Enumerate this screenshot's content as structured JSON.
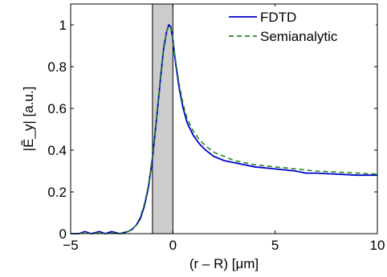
{
  "chart_data": {
    "type": "line",
    "xlabel": "(r – R) [μm]",
    "ylabel": "|Ẽ_y| [a.u.]",
    "xlim": [
      -5,
      10
    ],
    "ylim": [
      0,
      1.1
    ],
    "xticks": [
      -5,
      0,
      5,
      10
    ],
    "xtick_labels": [
      "−5",
      "0",
      "5",
      "10"
    ],
    "yticks": [
      0,
      0.2,
      0.4,
      0.6,
      0.8,
      1
    ],
    "ytick_labels": [
      "0",
      "0.2",
      "0.4",
      "0.6",
      "0.8",
      "1"
    ],
    "grid": false,
    "legend_position": "top-right",
    "shaded_region": {
      "x_start": -1.0,
      "x_end": 0.0,
      "color": "#cccccc"
    },
    "series": [
      {
        "name": "FDTD",
        "color": "#0000cc",
        "style": "solid",
        "x": [
          -5,
          -4.6,
          -4.3,
          -4.0,
          -3.6,
          -3.3,
          -3.0,
          -2.6,
          -2.2,
          -2.0,
          -1.8,
          -1.6,
          -1.4,
          -1.2,
          -1.0,
          -0.8,
          -0.6,
          -0.45,
          -0.3,
          -0.2,
          -0.1,
          0.0,
          0.1,
          0.3,
          0.5,
          0.7,
          1.0,
          1.3,
          1.6,
          2.0,
          2.5,
          3.0,
          3.5,
          4.0,
          5.0,
          6.0,
          6.5,
          7.0,
          8.0,
          9.0,
          10.0
        ],
        "y": [
          0.0,
          0.0,
          0.01,
          0.0,
          0.01,
          0.0,
          0.01,
          0.0,
          0.01,
          0.02,
          0.04,
          0.07,
          0.13,
          0.22,
          0.36,
          0.55,
          0.75,
          0.89,
          0.97,
          1.0,
          0.99,
          0.93,
          0.84,
          0.7,
          0.6,
          0.53,
          0.47,
          0.43,
          0.4,
          0.37,
          0.35,
          0.34,
          0.33,
          0.32,
          0.31,
          0.3,
          0.29,
          0.29,
          0.285,
          0.28,
          0.28
        ]
      },
      {
        "name": "Semianalytic",
        "color": "#228822",
        "style": "dashed",
        "x": [
          -5,
          -4.6,
          -4.3,
          -4.0,
          -3.6,
          -3.3,
          -3.0,
          -2.6,
          -2.2,
          -2.0,
          -1.8,
          -1.6,
          -1.4,
          -1.2,
          -1.0,
          -0.8,
          -0.6,
          -0.45,
          -0.3,
          -0.2,
          -0.1,
          0.0,
          0.1,
          0.3,
          0.5,
          0.7,
          1.0,
          1.3,
          1.6,
          2.0,
          2.5,
          3.0,
          3.5,
          4.0,
          5.0,
          6.0,
          6.5,
          7.0,
          8.0,
          9.0,
          10.0
        ],
        "y": [
          0.0,
          0.0,
          0.005,
          0.0,
          0.005,
          0.0,
          0.005,
          0.0,
          0.01,
          0.02,
          0.04,
          0.08,
          0.14,
          0.23,
          0.37,
          0.56,
          0.76,
          0.9,
          0.97,
          0.995,
          0.985,
          0.93,
          0.85,
          0.72,
          0.62,
          0.55,
          0.49,
          0.45,
          0.42,
          0.39,
          0.37,
          0.35,
          0.34,
          0.33,
          0.32,
          0.31,
          0.305,
          0.3,
          0.295,
          0.29,
          0.285
        ]
      }
    ]
  }
}
